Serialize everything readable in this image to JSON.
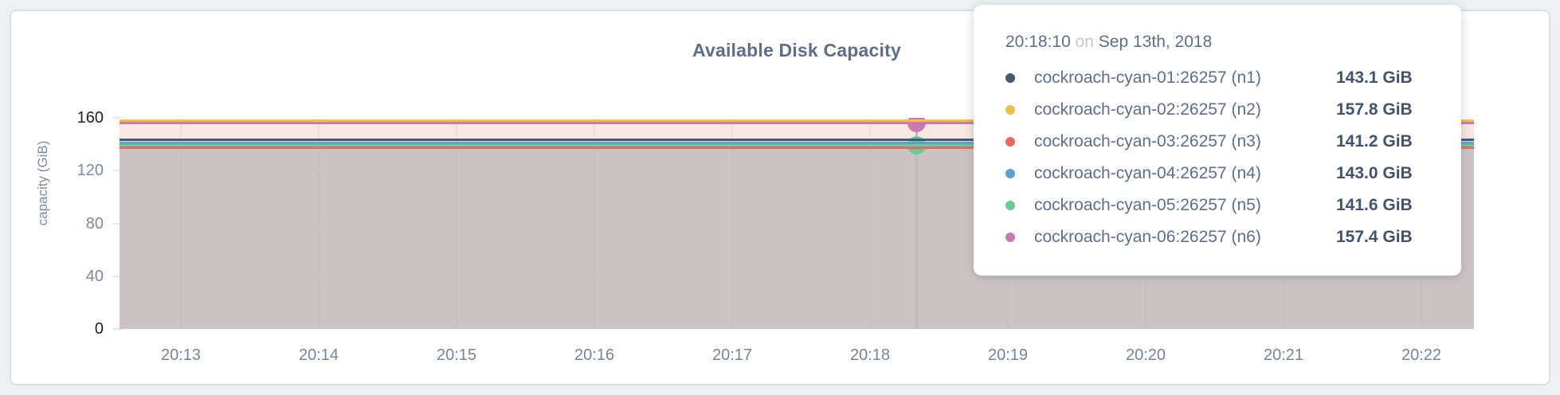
{
  "chart_data": {
    "type": "area",
    "title": "Available Disk Capacity",
    "xlabel": "",
    "ylabel": "capacity (GiB)",
    "ylim": [
      0,
      160
    ],
    "yticks": [
      0,
      40,
      80,
      120,
      160
    ],
    "ytick_emphasized": [
      0,
      160
    ],
    "x_tick_labels": [
      "20:13",
      "20:14",
      "20:15",
      "20:16",
      "20:17",
      "20:18",
      "20:19",
      "20:20",
      "20:21",
      "20:22"
    ],
    "grid": true,
    "legend_position": "tooltip",
    "series": [
      {
        "id": "n1",
        "name": "cockroach-cyan-01:26257 (n1)",
        "color": "#475872",
        "value": 143.1,
        "value_label": "143.1 GiB"
      },
      {
        "id": "n2",
        "name": "cockroach-cyan-02:26257 (n2)",
        "color": "#eec043",
        "value": 157.8,
        "value_label": "157.8 GiB"
      },
      {
        "id": "n3",
        "name": "cockroach-cyan-03:26257 (n3)",
        "color": "#ee6861",
        "value": 141.2,
        "value_label": "141.2 GiB"
      },
      {
        "id": "n4",
        "name": "cockroach-cyan-04:26257 (n4)",
        "color": "#5d9fd8",
        "value": 143.0,
        "value_label": "143.0 GiB"
      },
      {
        "id": "n5",
        "name": "cockroach-cyan-05:26257 (n5)",
        "color": "#67cb94",
        "value": 141.6,
        "value_label": "141.6 GiB"
      },
      {
        "id": "n6",
        "name": "cockroach-cyan-06:26257 (n6)",
        "color": "#cc78b4",
        "value": 157.4,
        "value_label": "157.4 GiB"
      }
    ],
    "hover": {
      "time_label": "20:18:10",
      "highlighted_series": [
        "n6",
        "n5"
      ]
    }
  },
  "tooltip": {
    "time": "20:18:10",
    "connector": "on",
    "date": "Sep 13th, 2018",
    "rows": [
      {
        "name": "cockroach-cyan-01:26257 (n1)",
        "value": "143.1 GiB",
        "color": "#475872"
      },
      {
        "name": "cockroach-cyan-02:26257 (n2)",
        "value": "157.8 GiB",
        "color": "#eec043"
      },
      {
        "name": "cockroach-cyan-03:26257 (n3)",
        "value": "141.2 GiB",
        "color": "#ee6861"
      },
      {
        "name": "cockroach-cyan-04:26257 (n4)",
        "value": "143.0 GiB",
        "color": "#5d9fd8"
      },
      {
        "name": "cockroach-cyan-05:26257 (n5)",
        "value": "141.6 GiB",
        "color": "#67cb94"
      },
      {
        "name": "cockroach-cyan-06:26257 (n6)",
        "value": "157.4 GiB",
        "color": "#cc78b4"
      }
    ]
  },
  "colors": {
    "page_background": "#eef0f3",
    "card_background": "#ffffff",
    "card_border": "#dcdfe6",
    "title_text": "#5c6e8d",
    "axis_text": "#7b89a0",
    "axis_text_emphasized": "#1a212b",
    "hover_guideline": "#b9bcc0"
  }
}
